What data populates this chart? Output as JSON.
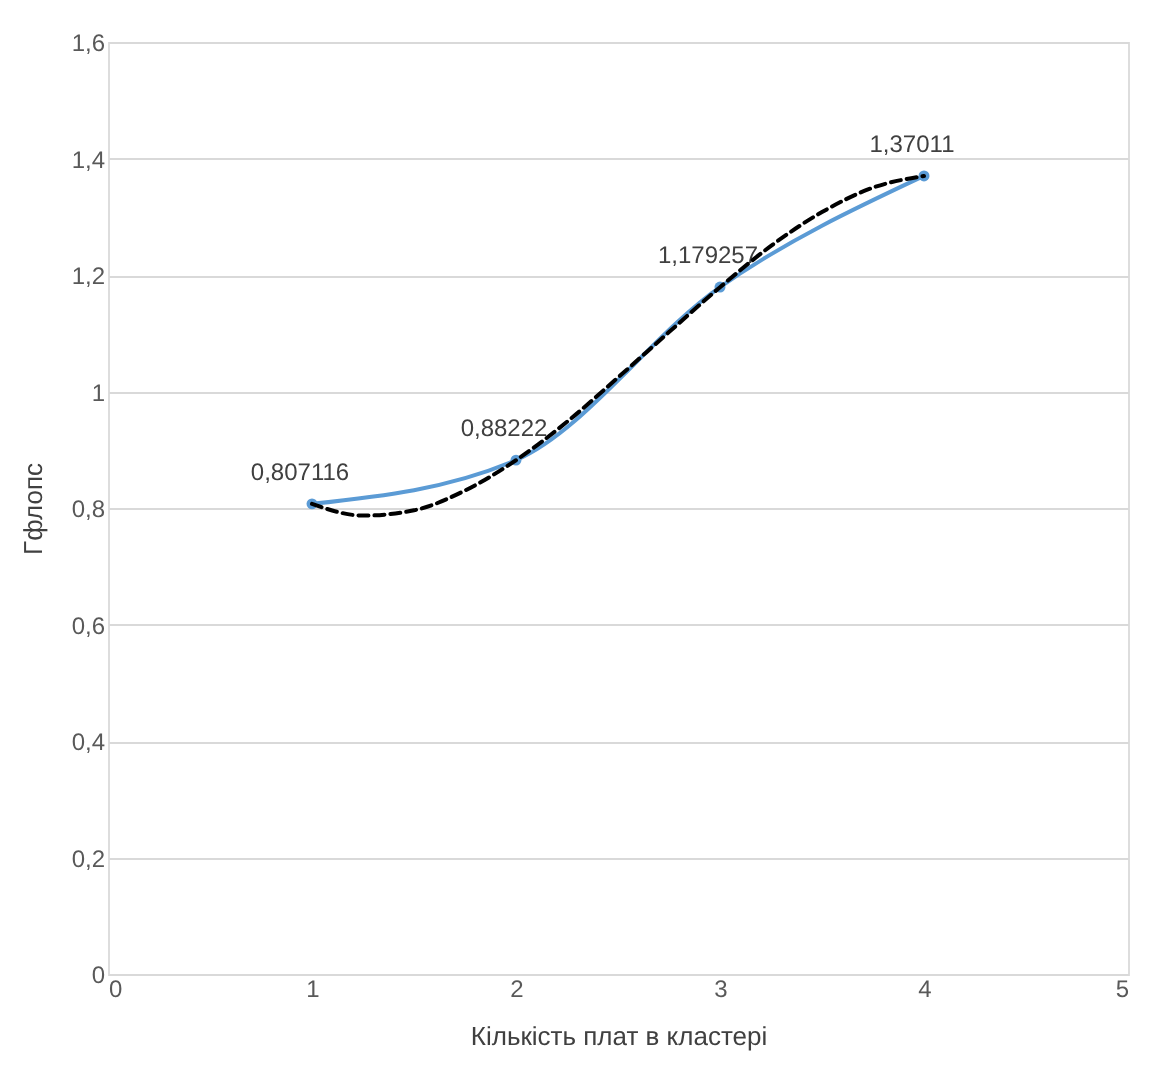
{
  "chart_data": {
    "type": "line",
    "xlabel": "Кількість плат в кластері",
    "ylabel": "Гфлопс",
    "x": [
      1,
      2,
      3,
      4
    ],
    "series": [
      {
        "color": "#5b9bd5",
        "values": [
          0.807116,
          0.88222,
          1.179257,
          1.37011
        ],
        "marker": "circle",
        "line_style": "solid",
        "value_labels": [
          "0,807116",
          "0,88222",
          "1,179257",
          "1,37011"
        ]
      },
      {
        "type": "line",
        "color": "#000000",
        "marker": "none",
        "line_style": "dashed",
        "x": [
          1,
          1.25,
          1.5,
          1.75,
          2,
          2.25,
          2.5,
          2.75,
          3,
          3.25,
          3.5,
          3.75,
          4
        ],
        "values": [
          0.807,
          0.787,
          0.796,
          0.83,
          0.882,
          0.948,
          1.024,
          1.102,
          1.179,
          1.25,
          1.308,
          1.35,
          1.37
        ]
      }
    ],
    "xlim": [
      0,
      5
    ],
    "xticks": [
      0,
      1,
      2,
      3,
      4,
      5
    ],
    "ylim": [
      0,
      1.6
    ],
    "yticks": [
      0,
      {
        "value": 0.2,
        "label": "0,2"
      },
      {
        "value": 0.4,
        "label": "0,4"
      },
      {
        "value": 0.6,
        "label": "0,6"
      },
      {
        "value": 0.8,
        "label": "0,8"
      },
      1,
      {
        "value": 1.2,
        "label": "1,2"
      },
      {
        "value": 1.4,
        "label": "1,4"
      },
      {
        "value": 1.6,
        "label": "1,6"
      }
    ],
    "grid": "y"
  }
}
